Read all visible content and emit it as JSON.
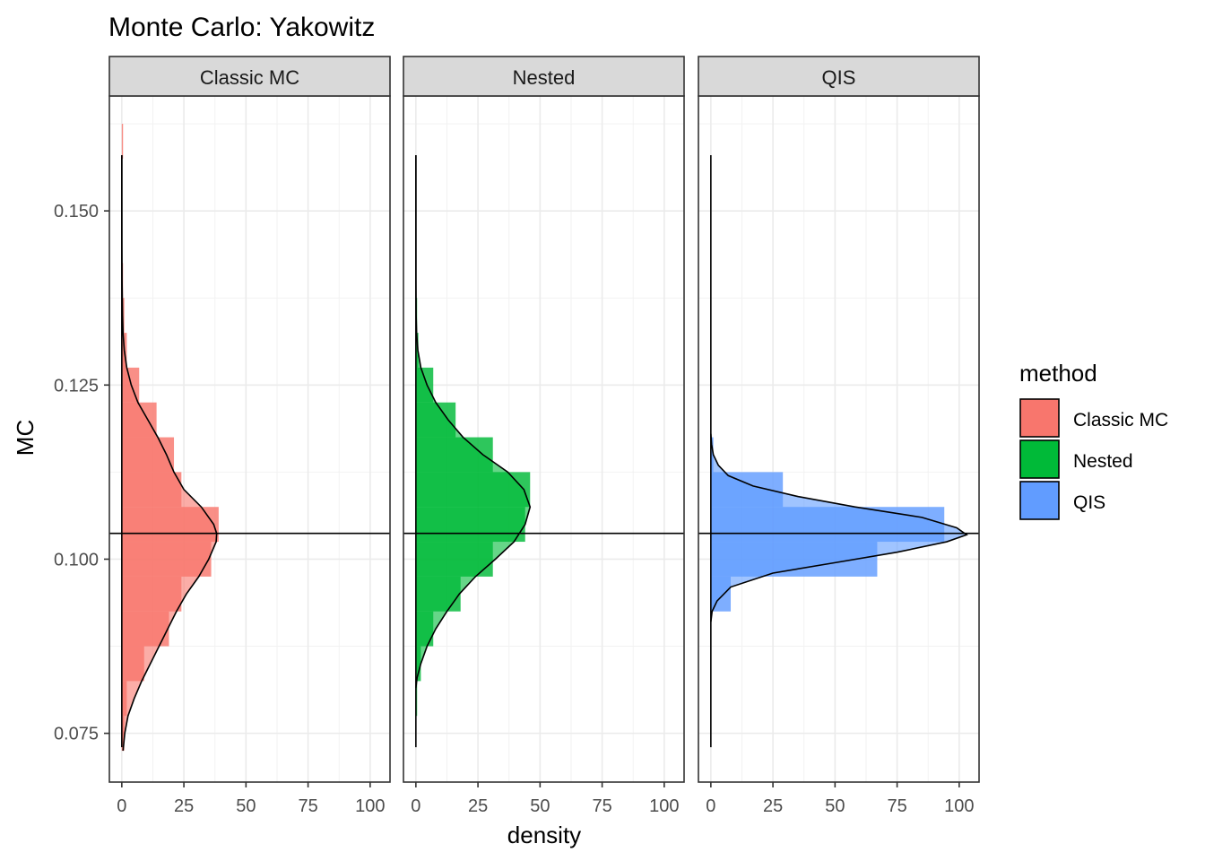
{
  "chart_data": {
    "type": "histogram-density-faceted",
    "title": "Monte Carlo: Yakowitz",
    "xlabel": "density",
    "ylabel": "MC",
    "ylim": [
      0.068,
      0.1665
    ],
    "xlim": [
      -5,
      108
    ],
    "y_ticks": [
      0.075,
      0.1,
      0.125,
      0.15
    ],
    "y_tick_labels": [
      "0.075",
      "0.100",
      "0.125",
      "0.150"
    ],
    "x_ticks": [
      0,
      25,
      50,
      75,
      100
    ],
    "x_tick_labels": [
      "0",
      "25",
      "50",
      "75",
      "100"
    ],
    "reference_line_y": 0.1037,
    "grid": true,
    "legend": {
      "title": "method",
      "position": "right",
      "entries": [
        {
          "label": "Classic MC",
          "color": "#F8766D"
        },
        {
          "label": "Nested",
          "color": "#00BA38"
        },
        {
          "label": "QIS",
          "color": "#619CFF"
        }
      ]
    },
    "facets": [
      {
        "label": "Classic MC",
        "color": "#F8766D",
        "bins": [
          {
            "y0": 0.0725,
            "y1": 0.0775,
            "d": 1
          },
          {
            "y0": 0.0775,
            "y1": 0.0825,
            "d": 2
          },
          {
            "y0": 0.0825,
            "y1": 0.0875,
            "d": 9
          },
          {
            "y0": 0.0875,
            "y1": 0.0925,
            "d": 19
          },
          {
            "y0": 0.0925,
            "y1": 0.0975,
            "d": 24
          },
          {
            "y0": 0.0975,
            "y1": 0.1025,
            "d": 36
          },
          {
            "y0": 0.1025,
            "y1": 0.1075,
            "d": 39
          },
          {
            "y0": 0.1075,
            "y1": 0.1125,
            "d": 24
          },
          {
            "y0": 0.1125,
            "y1": 0.1175,
            "d": 21
          },
          {
            "y0": 0.1175,
            "y1": 0.1225,
            "d": 14
          },
          {
            "y0": 0.1225,
            "y1": 0.1275,
            "d": 7
          },
          {
            "y0": 0.1275,
            "y1": 0.1325,
            "d": 2
          },
          {
            "y0": 0.1325,
            "y1": 0.1375,
            "d": 1
          },
          {
            "y0": 0.1375,
            "y1": 0.1425,
            "d": 0.5
          },
          {
            "y0": 0.1575,
            "y1": 0.1625,
            "d": 0.5
          }
        ],
        "density": [
          [
            0.0725,
            0.5
          ],
          [
            0.075,
            1.2
          ],
          [
            0.0775,
            2.5
          ],
          [
            0.08,
            5
          ],
          [
            0.0825,
            8
          ],
          [
            0.085,
            11.5
          ],
          [
            0.0875,
            15
          ],
          [
            0.09,
            18.5
          ],
          [
            0.0925,
            22
          ],
          [
            0.095,
            26
          ],
          [
            0.0975,
            31
          ],
          [
            0.1,
            35
          ],
          [
            0.1025,
            38
          ],
          [
            0.1037,
            38.2
          ],
          [
            0.105,
            37
          ],
          [
            0.1075,
            32
          ],
          [
            0.11,
            25
          ],
          [
            0.1125,
            21
          ],
          [
            0.115,
            18
          ],
          [
            0.1175,
            14.5
          ],
          [
            0.12,
            10.5
          ],
          [
            0.1225,
            6.5
          ],
          [
            0.125,
            3.8
          ],
          [
            0.1275,
            2
          ],
          [
            0.13,
            1
          ],
          [
            0.1325,
            0.5
          ],
          [
            0.135,
            0.3
          ],
          [
            0.14,
            0.1
          ],
          [
            0.145,
            0.03
          ],
          [
            0.15,
            0.01
          ],
          [
            0.158,
            0
          ]
        ]
      },
      {
        "label": "Nested",
        "color": "#00BA38",
        "bins": [
          {
            "y0": 0.0775,
            "y1": 0.0825,
            "d": 0.5
          },
          {
            "y0": 0.0825,
            "y1": 0.0875,
            "d": 2
          },
          {
            "y0": 0.0875,
            "y1": 0.0925,
            "d": 7
          },
          {
            "y0": 0.0925,
            "y1": 0.0975,
            "d": 18
          },
          {
            "y0": 0.0975,
            "y1": 0.1025,
            "d": 31
          },
          {
            "y0": 0.1025,
            "y1": 0.1075,
            "d": 44
          },
          {
            "y0": 0.1075,
            "y1": 0.1125,
            "d": 46
          },
          {
            "y0": 0.1125,
            "y1": 0.1175,
            "d": 31
          },
          {
            "y0": 0.1175,
            "y1": 0.1225,
            "d": 16
          },
          {
            "y0": 0.1225,
            "y1": 0.1275,
            "d": 7
          },
          {
            "y0": 0.1275,
            "y1": 0.1325,
            "d": 1
          },
          {
            "y0": 0.1325,
            "y1": 0.1375,
            "d": 0.5
          }
        ],
        "density": [
          [
            0.0815,
            0
          ],
          [
            0.083,
            0.5
          ],
          [
            0.085,
            2
          ],
          [
            0.0875,
            4.5
          ],
          [
            0.09,
            8
          ],
          [
            0.0925,
            12.5
          ],
          [
            0.095,
            17.5
          ],
          [
            0.0975,
            24
          ],
          [
            0.1,
            32
          ],
          [
            0.1025,
            39.5
          ],
          [
            0.105,
            44
          ],
          [
            0.1075,
            46
          ],
          [
            0.11,
            43.5
          ],
          [
            0.1125,
            37
          ],
          [
            0.115,
            27
          ],
          [
            0.1175,
            19
          ],
          [
            0.12,
            13
          ],
          [
            0.1225,
            8
          ],
          [
            0.125,
            4.5
          ],
          [
            0.1275,
            2
          ],
          [
            0.13,
            0.8
          ],
          [
            0.1325,
            0.3
          ],
          [
            0.135,
            0.1
          ],
          [
            0.14,
            0.02
          ],
          [
            0.158,
            0
          ]
        ]
      },
      {
        "label": "QIS",
        "color": "#619CFF",
        "bins": [
          {
            "y0": 0.0925,
            "y1": 0.0975,
            "d": 8
          },
          {
            "y0": 0.0975,
            "y1": 0.1025,
            "d": 67
          },
          {
            "y0": 0.1025,
            "y1": 0.1075,
            "d": 94
          },
          {
            "y0": 0.1075,
            "y1": 0.1125,
            "d": 29
          },
          {
            "y0": 0.1125,
            "y1": 0.1175,
            "d": 1
          }
        ],
        "density": [
          [
            0.091,
            0
          ],
          [
            0.0925,
            0.5
          ],
          [
            0.094,
            2.5
          ],
          [
            0.096,
            8
          ],
          [
            0.098,
            25
          ],
          [
            0.0995,
            50
          ],
          [
            0.101,
            75
          ],
          [
            0.1025,
            95
          ],
          [
            0.1035,
            103
          ],
          [
            0.1045,
            99
          ],
          [
            0.106,
            85
          ],
          [
            0.1075,
            58
          ],
          [
            0.109,
            35
          ],
          [
            0.1105,
            17
          ],
          [
            0.112,
            7
          ],
          [
            0.1135,
            3
          ],
          [
            0.115,
            1
          ],
          [
            0.1165,
            0.3
          ],
          [
            0.118,
            0
          ]
        ]
      }
    ]
  }
}
